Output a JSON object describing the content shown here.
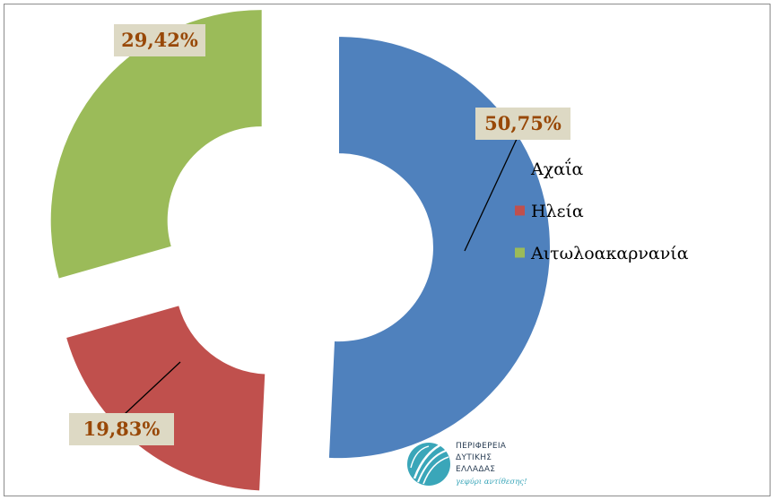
{
  "chart_data": {
    "type": "pie",
    "donut": true,
    "exploded": true,
    "categories": [
      "Αχαΐα",
      "Ηλεία",
      "Αιτωλοακαρνανία"
    ],
    "values": [
      50.75,
      19.83,
      29.42
    ],
    "value_labels": [
      "50,75%",
      "19,83%",
      "29,42%"
    ],
    "colors": [
      "#4f81bd",
      "#c0504d",
      "#9bbb59"
    ],
    "legend_position": "right"
  },
  "logo": {
    "lines": [
      "ΠΕΡΙΦΕΡΕΙΑ",
      "ΔΥΤΙΚΗΣ",
      "ΕΛΛΑΔΑΣ"
    ],
    "slogan": "γεφύρι αντίθεσης!"
  }
}
